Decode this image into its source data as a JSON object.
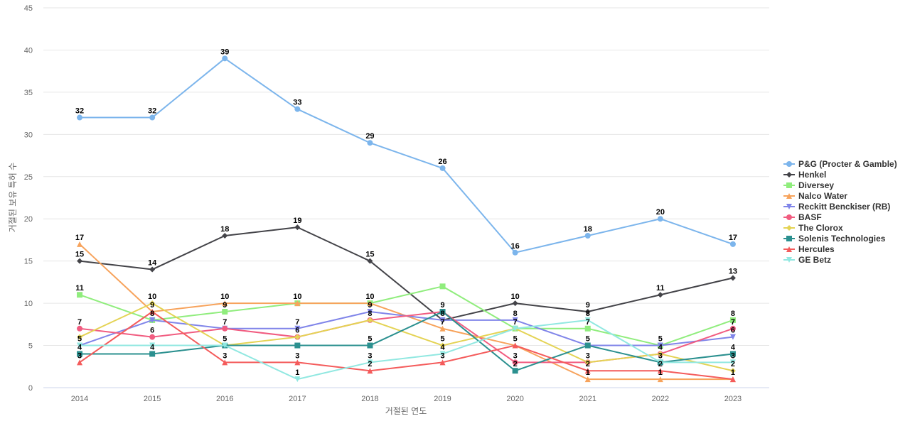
{
  "chart_data": {
    "type": "line",
    "title": "",
    "xlabel": "거절된 연도",
    "ylabel": "거절된 보유 특허 수",
    "x": [
      2014,
      2015,
      2016,
      2017,
      2018,
      2019,
      2020,
      2021,
      2022,
      2023
    ],
    "ylim": [
      0,
      45
    ],
    "yticks": [
      0,
      5,
      10,
      15,
      20,
      25,
      30,
      35,
      40,
      45
    ],
    "grid": true,
    "legend_position": "right",
    "series": [
      {
        "name": "P&G (Procter & Gamble)",
        "color": "#7cb5ec",
        "marker": "circle",
        "values": [
          32,
          32,
          39,
          33,
          29,
          26,
          16,
          18,
          20,
          17
        ]
      },
      {
        "name": "Henkel",
        "color": "#434348",
        "marker": "diamond",
        "values": [
          15,
          14,
          18,
          19,
          15,
          8,
          10,
          9,
          11,
          13
        ]
      },
      {
        "name": "Diversey",
        "color": "#90ed7d",
        "marker": "square",
        "values": [
          11,
          8,
          9,
          10,
          10,
          12,
          7,
          7,
          5,
          8
        ]
      },
      {
        "name": "Nalco Water",
        "color": "#f7a35c",
        "marker": "triangle",
        "values": [
          17,
          9,
          10,
          10,
          10,
          7,
          5,
          1,
          1,
          1
        ]
      },
      {
        "name": "Reckitt Benckiser (RB)",
        "color": "#8085e9",
        "marker": "triangle-down",
        "values": [
          5,
          8,
          7,
          7,
          9,
          8,
          8,
          5,
          5,
          6
        ]
      },
      {
        "name": "BASF",
        "color": "#f15c80",
        "marker": "circle",
        "values": [
          7,
          6,
          7,
          6,
          8,
          9,
          3,
          3,
          4,
          7
        ]
      },
      {
        "name": "The Clorox",
        "color": "#e4d354",
        "marker": "diamond",
        "values": [
          6,
          10,
          5,
          6,
          8,
          5,
          7,
          3,
          4,
          2
        ]
      },
      {
        "name": "Solenis Technologies",
        "color": "#2b908f",
        "marker": "square",
        "values": [
          4,
          4,
          5,
          5,
          5,
          9,
          2,
          5,
          3,
          4
        ]
      },
      {
        "name": "Hercules",
        "color": "#f45b5b",
        "marker": "triangle",
        "values": [
          3,
          9,
          3,
          3,
          2,
          3,
          5,
          2,
          2,
          1
        ]
      },
      {
        "name": "GE Betz",
        "color": "#91e8e1",
        "marker": "triangle-down",
        "values": [
          5,
          5,
          5,
          1,
          3,
          4,
          7,
          8,
          3,
          3
        ]
      }
    ],
    "data_labels": {
      "2014": [
        32,
        17,
        15,
        11,
        7,
        5,
        4,
        3
      ],
      "2015": [
        32,
        14,
        10,
        9,
        8,
        6,
        4
      ],
      "2016": [
        39,
        18,
        10,
        9,
        7,
        5,
        3
      ],
      "2017": [
        33,
        19,
        10,
        7,
        6,
        3,
        1
      ],
      "2018": [
        29,
        15,
        10,
        9,
        8,
        5,
        3,
        2
      ],
      "2019": [
        26,
        9,
        8,
        7,
        5,
        4,
        3
      ],
      "2020": [
        16,
        10,
        8,
        7,
        5,
        3,
        2
      ],
      "2021": [
        18,
        9,
        8,
        7,
        5,
        3,
        2,
        1
      ],
      "2022": [
        20,
        11,
        5,
        4,
        3,
        2,
        1
      ],
      "2023": [
        17,
        13,
        8,
        7,
        6,
        4,
        3,
        2,
        1
      ]
    }
  }
}
